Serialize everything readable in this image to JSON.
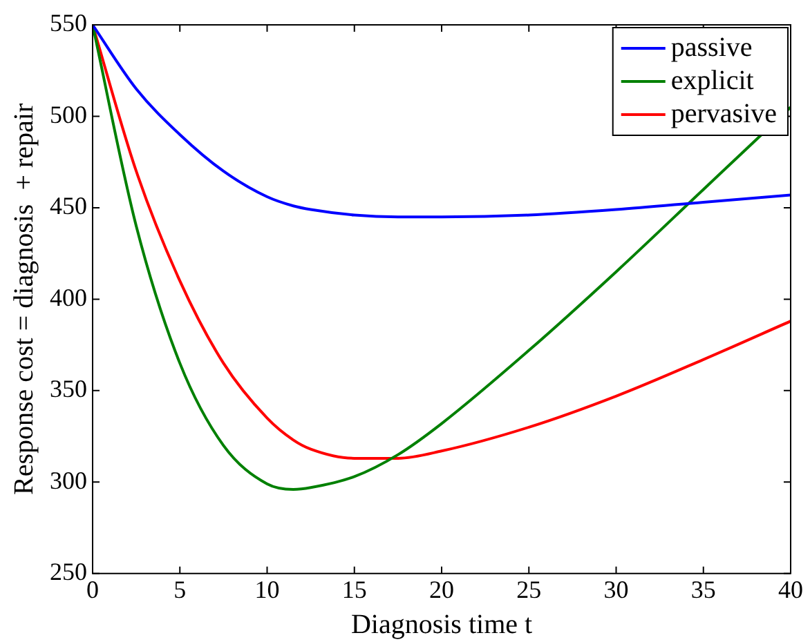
{
  "chart_data": {
    "type": "line",
    "xlabel": "Diagnosis time t",
    "ylabel": "Response cost = diagnosis  + repair",
    "xlim": [
      0,
      40
    ],
    "xticks": [
      0,
      5,
      10,
      15,
      20,
      25,
      30,
      35,
      40
    ],
    "ylim": [
      250,
      550
    ],
    "yticks": [
      250,
      300,
      350,
      400,
      450,
      500,
      550
    ],
    "grid": false,
    "legend": "top right",
    "marker": "none",
    "line_style": "solid",
    "x": [
      0,
      2.5,
      5,
      7.5,
      10,
      11.5,
      12.5,
      15,
      17.5,
      20,
      25,
      30,
      35,
      40
    ],
    "series": [
      {
        "name": "passive",
        "color": "#0000ff",
        "values": [
          550,
          515,
          490,
          470,
          456,
          451,
          449,
          446,
          445,
          445,
          446,
          449,
          453,
          457
        ]
      },
      {
        "name": "explicit",
        "color": "#008000",
        "values": [
          550,
          440,
          365,
          320,
          299,
          296,
          297,
          303,
          315,
          332,
          372,
          415,
          460,
          505
        ]
      },
      {
        "name": "pervasive",
        "color": "#ff0000",
        "values": [
          550,
          470,
          410,
          365,
          335,
          323,
          318,
          313,
          313,
          317,
          330,
          347,
          367,
          388
        ]
      }
    ]
  }
}
